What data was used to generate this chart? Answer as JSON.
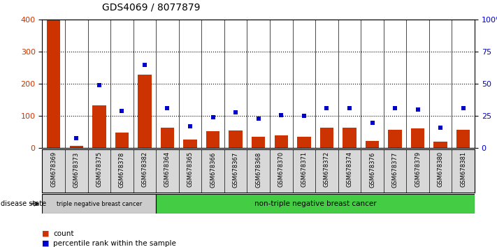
{
  "title": "GDS4069 / 8077879",
  "samples": [
    "GSM678369",
    "GSM678373",
    "GSM678375",
    "GSM678378",
    "GSM678382",
    "GSM678364",
    "GSM678365",
    "GSM678366",
    "GSM678367",
    "GSM678368",
    "GSM678370",
    "GSM678371",
    "GSM678372",
    "GSM678374",
    "GSM678376",
    "GSM678377",
    "GSM678379",
    "GSM678380",
    "GSM678381"
  ],
  "counts": [
    400,
    8,
    133,
    48,
    230,
    63,
    28,
    52,
    55,
    35,
    40,
    35,
    63,
    63,
    22,
    58,
    62,
    20,
    57
  ],
  "percentiles": [
    null,
    8,
    49,
    29,
    65,
    31,
    17,
    24,
    28,
    23,
    26,
    25,
    31,
    31,
    20,
    31,
    30,
    16,
    31
  ],
  "triple_neg_count": 5,
  "non_triple_neg_count": 14,
  "group1_label": "triple negative breast cancer",
  "group2_label": "non-triple negative breast cancer",
  "disease_state_label": "disease state",
  "bar_color": "#cc3300",
  "dot_color": "#0000cc",
  "ylim_left": [
    0,
    400
  ],
  "ylim_right": [
    0,
    100
  ],
  "yticks_left": [
    0,
    100,
    200,
    300,
    400
  ],
  "yticks_right": [
    0,
    25,
    50,
    75,
    100
  ],
  "ytick_labels_right": [
    "0",
    "25",
    "50",
    "75",
    "100%"
  ],
  "grid_values": [
    100,
    200,
    300
  ],
  "legend_count_label": "count",
  "legend_pct_label": "percentile rank within the sample",
  "bg_color": "#d8d8d8",
  "group1_bg": "#cccccc",
  "group2_bg": "#44cc44",
  "title_fontsize": 10,
  "tick_fontsize": 8,
  "label_fontsize": 7
}
